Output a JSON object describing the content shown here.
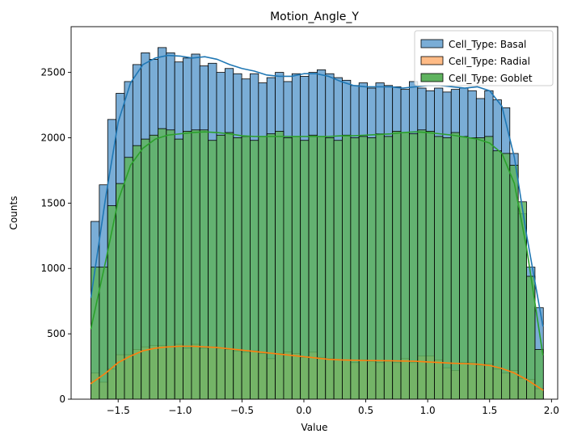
{
  "chart_data": {
    "type": "histogram",
    "title": "Motion_Angle_Y",
    "xlabel": "Value",
    "ylabel": "Counts",
    "xlim": [
      -1.88,
      2.05
    ],
    "ylim": [
      0,
      2850
    ],
    "xticks": [
      -1.5,
      -1.0,
      -0.5,
      0.0,
      0.5,
      1.0,
      1.5,
      2.0
    ],
    "xtick_labels": [
      "−1.5",
      "−1.0",
      "−0.5",
      "0.0",
      "0.5",
      "1.0",
      "1.5",
      "2.0"
    ],
    "yticks": [
      0,
      500,
      1000,
      1500,
      2000,
      2500
    ],
    "ytick_labels": [
      "0",
      "500",
      "1000",
      "1500",
      "2000",
      "2500"
    ],
    "legend_position": "top-right",
    "bins": {
      "start": -1.72,
      "width": 0.06767,
      "count": 54
    },
    "series": [
      {
        "name": "Cell_Type: Basal",
        "color": "#1f77b4",
        "fill": "#7aadd6",
        "values": [
          1360,
          1640,
          2140,
          2340,
          2430,
          2560,
          2650,
          2600,
          2690,
          2650,
          2580,
          2610,
          2640,
          2550,
          2570,
          2500,
          2530,
          2490,
          2450,
          2490,
          2420,
          2460,
          2500,
          2430,
          2490,
          2470,
          2500,
          2520,
          2490,
          2460,
          2440,
          2400,
          2420,
          2380,
          2420,
          2400,
          2390,
          2370,
          2430,
          2380,
          2360,
          2380,
          2350,
          2370,
          2380,
          2360,
          2300,
          2360,
          2290,
          2230,
          1880,
          1420,
          1010,
          700
        ],
        "kde": [
          [
            -1.72,
            780
          ],
          [
            -1.6,
            1550
          ],
          [
            -1.5,
            2120
          ],
          [
            -1.4,
            2420
          ],
          [
            -1.3,
            2560
          ],
          [
            -1.2,
            2610
          ],
          [
            -1.1,
            2630
          ],
          [
            -1.0,
            2625
          ],
          [
            -0.9,
            2610
          ],
          [
            -0.8,
            2620
          ],
          [
            -0.7,
            2600
          ],
          [
            -0.6,
            2560
          ],
          [
            -0.5,
            2530
          ],
          [
            -0.4,
            2510
          ],
          [
            -0.3,
            2480
          ],
          [
            -0.2,
            2470
          ],
          [
            -0.1,
            2470
          ],
          [
            0.0,
            2490
          ],
          [
            0.1,
            2490
          ],
          [
            0.2,
            2470
          ],
          [
            0.3,
            2430
          ],
          [
            0.4,
            2400
          ],
          [
            0.5,
            2390
          ],
          [
            0.6,
            2390
          ],
          [
            0.7,
            2390
          ],
          [
            0.8,
            2380
          ],
          [
            0.9,
            2390
          ],
          [
            1.0,
            2400
          ],
          [
            1.1,
            2400
          ],
          [
            1.2,
            2390
          ],
          [
            1.3,
            2380
          ],
          [
            1.4,
            2390
          ],
          [
            1.5,
            2360
          ],
          [
            1.6,
            2240
          ],
          [
            1.7,
            1850
          ],
          [
            1.8,
            1250
          ],
          [
            1.93,
            560
          ]
        ]
      },
      {
        "name": "Cell_Type: Radial",
        "color": "#ff7f0e",
        "fill": "#ffbb86",
        "values": [
          200,
          130,
          230,
          340,
          340,
          380,
          400,
          410,
          410,
          400,
          420,
          390,
          420,
          390,
          400,
          390,
          380,
          370,
          360,
          370,
          350,
          310,
          350,
          360,
          350,
          320,
          360,
          320,
          310,
          300,
          300,
          280,
          300,
          290,
          280,
          290,
          280,
          310,
          280,
          330,
          330,
          300,
          240,
          220,
          280,
          280,
          260,
          270,
          230,
          200,
          220,
          160,
          150,
          80
        ],
        "kde": [
          [
            -1.72,
            120
          ],
          [
            -1.6,
            200
          ],
          [
            -1.5,
            280
          ],
          [
            -1.4,
            330
          ],
          [
            -1.3,
            370
          ],
          [
            -1.2,
            390
          ],
          [
            -1.1,
            400
          ],
          [
            -1.0,
            405
          ],
          [
            -0.9,
            405
          ],
          [
            -0.8,
            400
          ],
          [
            -0.7,
            395
          ],
          [
            -0.6,
            385
          ],
          [
            -0.5,
            375
          ],
          [
            -0.4,
            365
          ],
          [
            -0.3,
            355
          ],
          [
            -0.2,
            345
          ],
          [
            -0.1,
            335
          ],
          [
            0.0,
            325
          ],
          [
            0.1,
            315
          ],
          [
            0.2,
            305
          ],
          [
            0.3,
            300
          ],
          [
            0.4,
            298
          ],
          [
            0.5,
            296
          ],
          [
            0.6,
            295
          ],
          [
            0.7,
            294
          ],
          [
            0.8,
            292
          ],
          [
            0.9,
            290
          ],
          [
            1.0,
            285
          ],
          [
            1.1,
            280
          ],
          [
            1.2,
            275
          ],
          [
            1.3,
            272
          ],
          [
            1.4,
            268
          ],
          [
            1.5,
            258
          ],
          [
            1.6,
            235
          ],
          [
            1.7,
            200
          ],
          [
            1.8,
            150
          ],
          [
            1.93,
            70
          ]
        ]
      },
      {
        "name": "Cell_Type: Goblet",
        "color": "#2ca02c",
        "fill": "#5fb35f",
        "values": [
          1010,
          1010,
          1480,
          1650,
          1850,
          1940,
          1990,
          2020,
          2070,
          2060,
          1990,
          2050,
          2060,
          2060,
          1980,
          2020,
          2040,
          2000,
          2010,
          1980,
          2010,
          2030,
          2050,
          2000,
          2010,
          1980,
          2020,
          2010,
          2000,
          1980,
          2020,
          2000,
          2010,
          2000,
          2030,
          2010,
          2050,
          2040,
          2030,
          2060,
          2050,
          2010,
          2000,
          2040,
          2010,
          2000,
          2000,
          2010,
          1900,
          1880,
          1790,
          1510,
          940,
          380
        ],
        "kde": [
          [
            -1.72,
            540
          ],
          [
            -1.6,
            1060
          ],
          [
            -1.5,
            1520
          ],
          [
            -1.4,
            1790
          ],
          [
            -1.3,
            1920
          ],
          [
            -1.2,
            1990
          ],
          [
            -1.1,
            2020
          ],
          [
            -1.0,
            2030
          ],
          [
            -0.9,
            2040
          ],
          [
            -0.8,
            2045
          ],
          [
            -0.7,
            2040
          ],
          [
            -0.6,
            2030
          ],
          [
            -0.5,
            2015
          ],
          [
            -0.4,
            2010
          ],
          [
            -0.3,
            2010
          ],
          [
            -0.2,
            2010
          ],
          [
            -0.1,
            2010
          ],
          [
            0.0,
            2010
          ],
          [
            0.1,
            2010
          ],
          [
            0.2,
            2010
          ],
          [
            0.3,
            2015
          ],
          [
            0.4,
            2015
          ],
          [
            0.5,
            2020
          ],
          [
            0.6,
            2025
          ],
          [
            0.7,
            2030
          ],
          [
            0.8,
            2040
          ],
          [
            0.9,
            2045
          ],
          [
            1.0,
            2040
          ],
          [
            1.1,
            2030
          ],
          [
            1.2,
            2020
          ],
          [
            1.3,
            2005
          ],
          [
            1.4,
            1990
          ],
          [
            1.5,
            1960
          ],
          [
            1.6,
            1880
          ],
          [
            1.7,
            1650
          ],
          [
            1.8,
            1150
          ],
          [
            1.93,
            340
          ]
        ]
      }
    ]
  }
}
